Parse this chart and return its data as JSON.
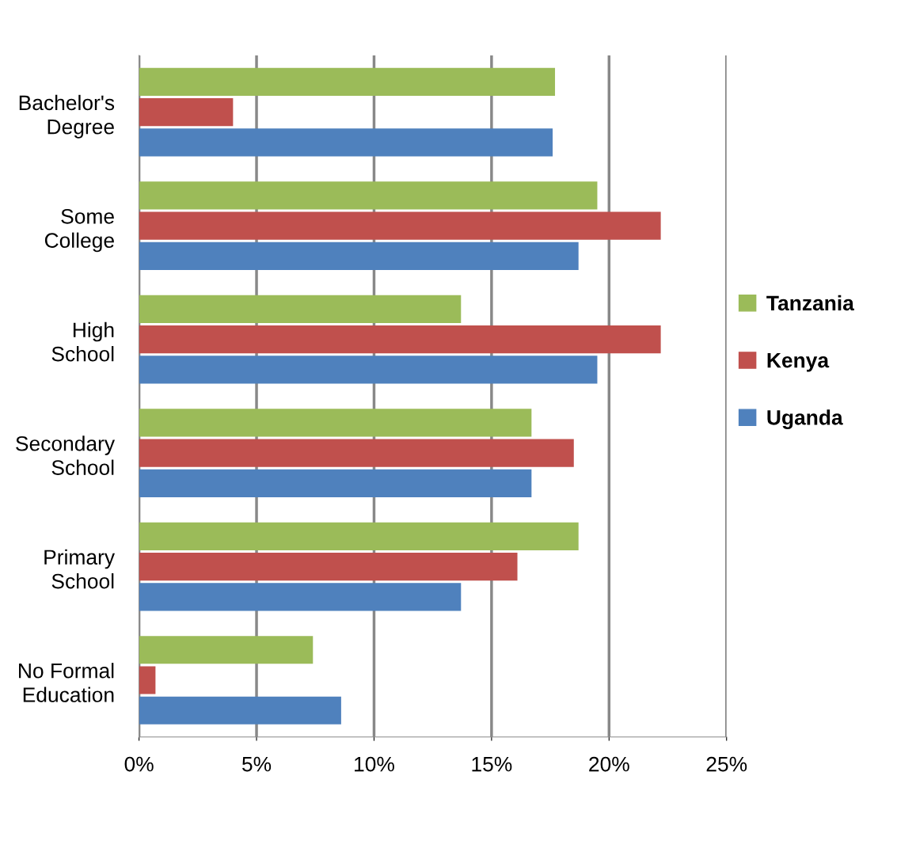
{
  "chart_data": {
    "type": "bar",
    "orientation": "horizontal",
    "categories": [
      "Bachelor's\nDegree",
      "Some\nCollege",
      "High\nSchool",
      "Secondary\nSchool",
      "Primary\nSchool",
      "No Formal\nEducation"
    ],
    "series": [
      {
        "name": "Tanzania",
        "color": "#9bbb59",
        "values": [
          17.7,
          19.5,
          13.7,
          16.7,
          18.7,
          7.4
        ]
      },
      {
        "name": "Kenya",
        "color": "#c0504d",
        "values": [
          4.0,
          22.2,
          22.2,
          18.5,
          16.1,
          0.7
        ]
      },
      {
        "name": "Uganda",
        "color": "#4f81bd",
        "values": [
          17.6,
          18.7,
          19.5,
          16.7,
          13.7,
          8.6
        ]
      }
    ],
    "xlim": [
      0,
      25
    ],
    "xticks": [
      {
        "value": 0,
        "label": "0%"
      },
      {
        "value": 5,
        "label": "5%"
      },
      {
        "value": 10,
        "label": "10%"
      },
      {
        "value": 15,
        "label": "15%"
      },
      {
        "value": 20,
        "label": "20%"
      },
      {
        "value": 25,
        "label": "25%"
      }
    ],
    "grid": "x",
    "legend": "right"
  }
}
